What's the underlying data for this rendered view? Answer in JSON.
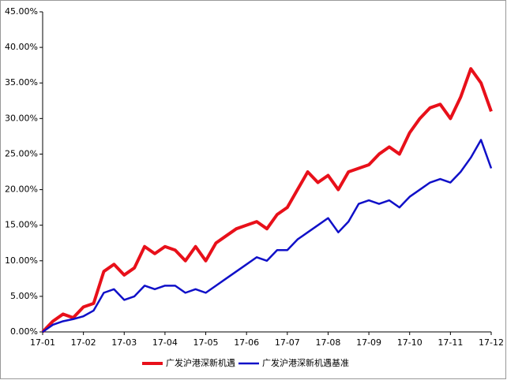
{
  "chart_data": {
    "type": "line",
    "categories": [
      "17-01",
      null,
      null,
      null,
      "17-02",
      null,
      null,
      null,
      "17-03",
      null,
      null,
      null,
      "17-04",
      null,
      null,
      null,
      "17-05",
      null,
      null,
      null,
      "17-06",
      null,
      null,
      null,
      "17-07",
      null,
      null,
      null,
      "17-08",
      null,
      null,
      null,
      "17-09",
      null,
      null,
      null,
      "17-10",
      null,
      null,
      null,
      "17-11",
      null,
      null,
      null,
      "17-12"
    ],
    "series": [
      {
        "name": "广发沪港深新机遇",
        "color": "#e8101a",
        "values": [
          0,
          1.5,
          2.5,
          2.0,
          3.5,
          4,
          8.5,
          9.5,
          8,
          9,
          12,
          11,
          12,
          11.5,
          10,
          12,
          10,
          12.5,
          13.5,
          14.5,
          15,
          15.5,
          14.5,
          16.5,
          17.5,
          20,
          22.5,
          21,
          22,
          20,
          22.5,
          23,
          23.5,
          25,
          26,
          25,
          28,
          30,
          31.5,
          32,
          30,
          33,
          37,
          35,
          31
        ]
      },
      {
        "name": "广发沪港深新机遇基准",
        "color": "#1010c8",
        "values": [
          0,
          1,
          1.5,
          1.8,
          2.2,
          3,
          5.5,
          6,
          4.5,
          5,
          6.5,
          6,
          6.5,
          6.5,
          5.5,
          6,
          5.5,
          6.5,
          7.5,
          8.5,
          9.5,
          10.5,
          10,
          11.5,
          11.5,
          13,
          14,
          15,
          16,
          14,
          15.5,
          18,
          18.5,
          18,
          18.5,
          17.5,
          19,
          20,
          21,
          21.5,
          21,
          22.5,
          24.5,
          27,
          23
        ]
      }
    ],
    "ylim": [
      0,
      45
    ],
    "yticks": [
      {
        "value": 0,
        "label": "0.00%"
      },
      {
        "value": 5,
        "label": "5.00%"
      },
      {
        "value": 10,
        "label": "10.00%"
      },
      {
        "value": 15,
        "label": "15.00%"
      },
      {
        "value": 20,
        "label": "20.00%"
      },
      {
        "value": 25,
        "label": "25.00%"
      },
      {
        "value": 30,
        "label": "30.00%"
      },
      {
        "value": 35,
        "label": "35.00%"
      },
      {
        "value": 40,
        "label": "40.00%"
      },
      {
        "value": 45,
        "label": "45.00%"
      }
    ],
    "grid": false
  }
}
